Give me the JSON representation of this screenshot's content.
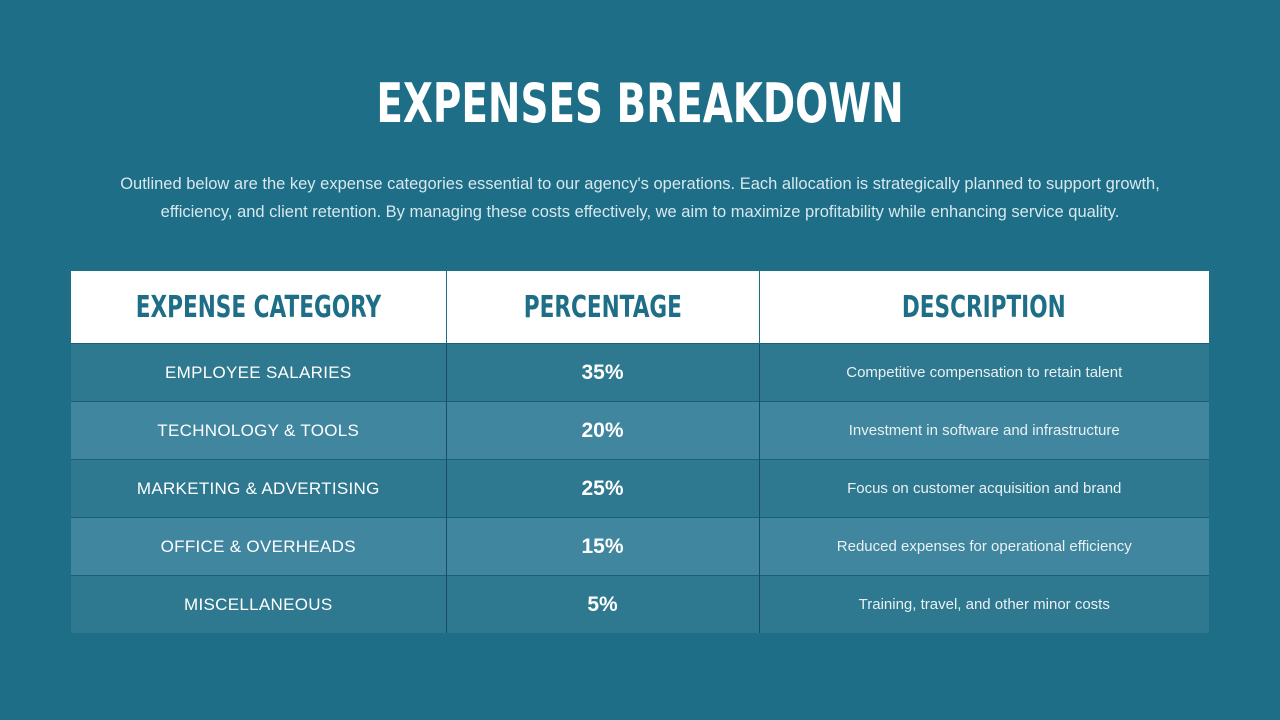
{
  "title": "EXPENSES BREAKDOWN",
  "intro": "Outlined below are the key expense categories essential to our agency's operations. Each allocation is strategically planned to support growth, efficiency, and client retention. By managing these costs effectively, we aim to maximize profitability while enhancing service quality.",
  "colors": {
    "background": "#1d6e86",
    "header_bg": "#ffffff",
    "header_text": "#1d6e86",
    "row_odd": "#2e7890",
    "row_even": "#3f869e"
  },
  "table": {
    "headers": [
      "EXPENSE CATEGORY",
      "PERCENTAGE",
      "DESCRIPTION"
    ],
    "rows": [
      {
        "category": "EMPLOYEE SALARIES",
        "percentage": "35%",
        "description": "Competitive compensation to retain talent"
      },
      {
        "category": "TECHNOLOGY & TOOLS",
        "percentage": "20%",
        "description": "Investment in software and infrastructure"
      },
      {
        "category": "MARKETING & ADVERTISING",
        "percentage": "25%",
        "description": "Focus on customer acquisition and brand"
      },
      {
        "category": "OFFICE & OVERHEADS",
        "percentage": "15%",
        "description": "Reduced expenses for operational efficiency"
      },
      {
        "category": "MISCELLANEOUS",
        "percentage": "5%",
        "description": "Training, travel, and other minor costs"
      }
    ]
  }
}
